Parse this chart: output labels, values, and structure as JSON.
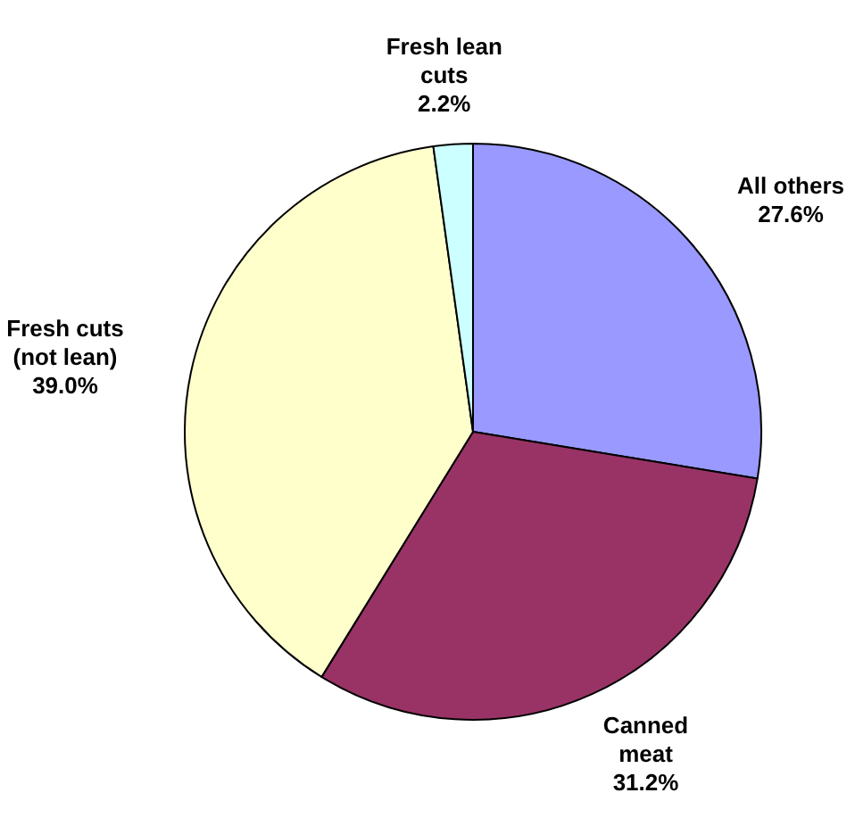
{
  "chart_data": {
    "type": "pie",
    "categories": [
      "All others",
      "Canned meat",
      "Fresh cuts (not lean)",
      "Fresh lean cuts"
    ],
    "values": [
      27.6,
      31.2,
      39.0,
      2.2
    ],
    "colors": [
      "#9999ff",
      "#993366",
      "#ffffcc",
      "#ccffff"
    ],
    "value_labels": [
      "27.6%",
      "31.2%",
      "39.0%",
      "2.2%"
    ],
    "legend": false
  }
}
